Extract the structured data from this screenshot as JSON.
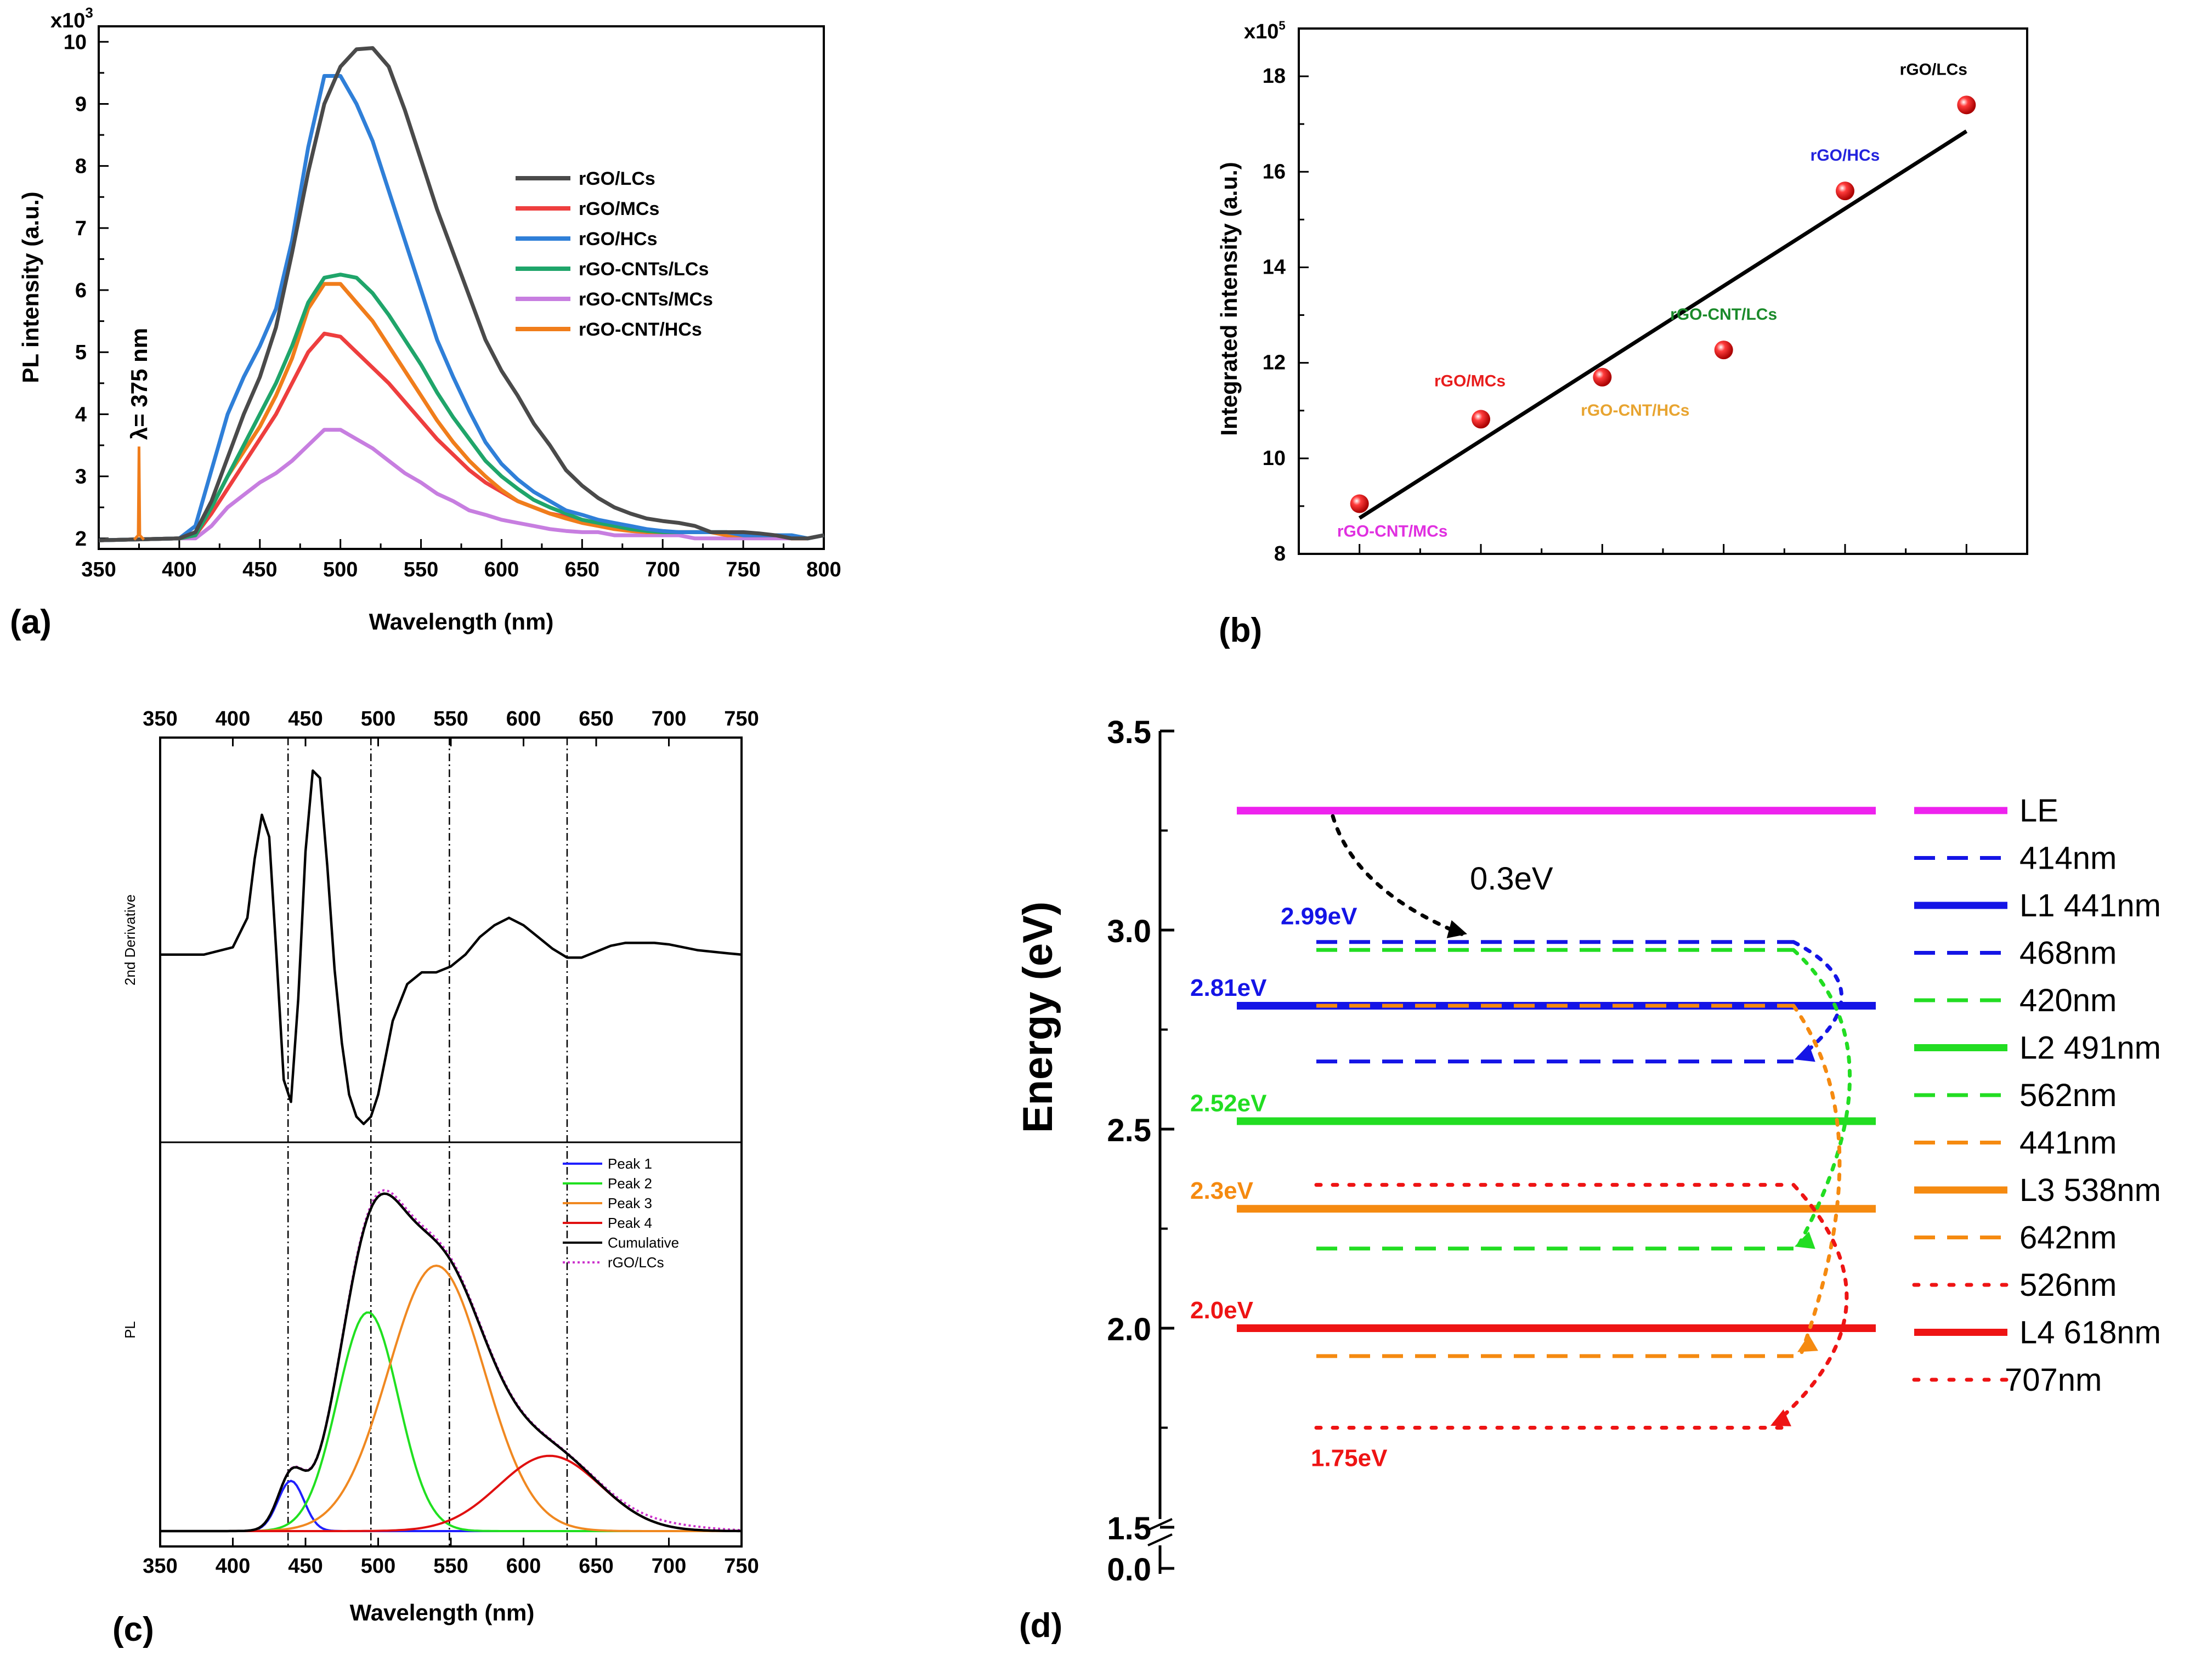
{
  "chart_data": [
    {
      "id": "a",
      "type": "line",
      "panel_label": "(a)",
      "xlabel": "Wavelength (nm)",
      "ylabel": "PL intensity (a.u.)",
      "y_multiplier": "x10",
      "y_multiplier_exp": "3",
      "xlim": [
        350,
        800
      ],
      "ylim": [
        2,
        10
      ],
      "xticks": [
        "350",
        "400",
        "450",
        "500",
        "550",
        "600",
        "650",
        "700",
        "750",
        "800"
      ],
      "yticks": [
        "2",
        "3",
        "4",
        "5",
        "6",
        "7",
        "8",
        "9",
        "10"
      ],
      "annotation": "λ= 375 nm",
      "excitation_peak": {
        "x": 375,
        "y": 3.48
      },
      "series": [
        {
          "name": "rGO/LCs",
          "color": "#4a4a4a",
          "x": [
            350,
            400,
            410,
            420,
            430,
            440,
            450,
            460,
            470,
            480,
            490,
            500,
            510,
            520,
            530,
            540,
            550,
            560,
            570,
            580,
            590,
            600,
            610,
            620,
            630,
            640,
            650,
            660,
            670,
            680,
            690,
            700,
            710,
            720,
            730,
            740,
            750,
            760,
            770,
            780,
            790,
            800
          ],
          "y": [
            1.97,
            2.0,
            2.1,
            2.6,
            3.3,
            4.0,
            4.6,
            5.4,
            6.6,
            7.9,
            9.0,
            9.6,
            9.88,
            9.9,
            9.6,
            8.9,
            8.1,
            7.3,
            6.6,
            5.9,
            5.2,
            4.7,
            4.3,
            3.85,
            3.5,
            3.1,
            2.85,
            2.65,
            2.5,
            2.4,
            2.32,
            2.28,
            2.25,
            2.2,
            2.1,
            2.1,
            2.1,
            2.08,
            2.05,
            2.0,
            2.0,
            2.05
          ]
        },
        {
          "name": "rGO/MCs",
          "color": "#ee3e3e",
          "x": [
            350,
            400,
            410,
            420,
            430,
            440,
            450,
            460,
            470,
            480,
            490,
            500,
            510,
            520,
            530,
            540,
            550,
            560,
            570,
            580,
            590,
            600,
            610,
            620,
            630,
            640,
            650,
            660,
            670,
            680,
            690,
            700,
            710,
            720,
            730,
            740,
            750,
            760,
            770,
            780,
            790,
            800
          ],
          "y": [
            1.97,
            2.0,
            2.05,
            2.4,
            2.8,
            3.2,
            3.6,
            4.0,
            4.5,
            5.0,
            5.3,
            5.25,
            5.0,
            4.75,
            4.5,
            4.2,
            3.9,
            3.6,
            3.35,
            3.1,
            2.9,
            2.75,
            2.6,
            2.5,
            2.4,
            2.35,
            2.3,
            2.25,
            2.2,
            2.15,
            2.1,
            2.1,
            2.1,
            2.1,
            2.1,
            2.05,
            2.05,
            2.05,
            2.05,
            2.0,
            2.0,
            2.05
          ]
        },
        {
          "name": "rGO/HCs",
          "color": "#2f7fd8",
          "x": [
            350,
            400,
            410,
            420,
            430,
            440,
            450,
            460,
            470,
            480,
            490,
            500,
            510,
            520,
            530,
            540,
            550,
            560,
            570,
            580,
            590,
            600,
            610,
            620,
            630,
            640,
            650,
            660,
            670,
            680,
            690,
            700,
            710,
            720,
            730,
            740,
            750,
            760,
            770,
            780,
            790,
            800
          ],
          "y": [
            1.97,
            2.0,
            2.2,
            3.1,
            4.0,
            4.6,
            5.1,
            5.7,
            6.8,
            8.3,
            9.45,
            9.45,
            9.0,
            8.4,
            7.6,
            6.8,
            6.0,
            5.2,
            4.6,
            4.05,
            3.55,
            3.2,
            2.95,
            2.75,
            2.6,
            2.45,
            2.38,
            2.3,
            2.25,
            2.2,
            2.15,
            2.12,
            2.1,
            2.1,
            2.1,
            2.1,
            2.05,
            2.05,
            2.05,
            2.05,
            2.0,
            2.05
          ]
        },
        {
          "name": "rGO-CNTs/LCs",
          "color": "#1fa56a",
          "x": [
            350,
            400,
            410,
            420,
            430,
            440,
            450,
            460,
            470,
            480,
            490,
            500,
            510,
            520,
            530,
            540,
            550,
            560,
            570,
            580,
            590,
            600,
            610,
            620,
            630,
            640,
            650,
            660,
            670,
            680,
            690,
            700,
            710,
            720,
            730,
            740,
            750,
            760,
            770,
            780,
            790,
            800
          ],
          "y": [
            1.97,
            2.0,
            2.05,
            2.5,
            3.0,
            3.5,
            4.0,
            4.5,
            5.1,
            5.8,
            6.2,
            6.25,
            6.2,
            5.95,
            5.6,
            5.2,
            4.8,
            4.35,
            3.95,
            3.6,
            3.25,
            3.0,
            2.8,
            2.62,
            2.5,
            2.4,
            2.3,
            2.25,
            2.2,
            2.15,
            2.12,
            2.1,
            2.1,
            2.1,
            2.1,
            2.1,
            2.05,
            2.05,
            2.05,
            2.05,
            2.0,
            2.05
          ]
        },
        {
          "name": "rGO-CNTs/MCs",
          "color": "#c77ee0",
          "x": [
            350,
            400,
            410,
            420,
            430,
            440,
            450,
            460,
            470,
            480,
            490,
            500,
            510,
            520,
            530,
            540,
            550,
            560,
            570,
            580,
            590,
            600,
            610,
            620,
            630,
            640,
            650,
            660,
            670,
            680,
            690,
            700,
            710,
            720,
            730,
            740,
            750,
            760,
            770,
            780,
            790,
            800
          ],
          "y": [
            1.97,
            2.0,
            2.0,
            2.2,
            2.5,
            2.7,
            2.9,
            3.05,
            3.25,
            3.5,
            3.75,
            3.75,
            3.6,
            3.45,
            3.25,
            3.05,
            2.9,
            2.72,
            2.6,
            2.45,
            2.38,
            2.3,
            2.25,
            2.2,
            2.15,
            2.12,
            2.1,
            2.1,
            2.05,
            2.05,
            2.05,
            2.05,
            2.05,
            2.0,
            2.0,
            2.0,
            2.0,
            2.0,
            2.0,
            2.0,
            2.0,
            2.05
          ]
        },
        {
          "name": "rGO-CNT/HCs",
          "color": "#f07d1b",
          "x": [
            350,
            400,
            410,
            420,
            430,
            440,
            450,
            460,
            470,
            480,
            490,
            500,
            510,
            520,
            530,
            540,
            550,
            560,
            570,
            580,
            590,
            600,
            610,
            620,
            630,
            640,
            650,
            660,
            670,
            680,
            690,
            700,
            710,
            720,
            730,
            740,
            750,
            760,
            770,
            780,
            790,
            800
          ],
          "y": [
            1.97,
            2.0,
            2.05,
            2.5,
            3.0,
            3.4,
            3.8,
            4.3,
            4.9,
            5.7,
            6.1,
            6.1,
            5.8,
            5.5,
            5.1,
            4.7,
            4.3,
            3.9,
            3.55,
            3.25,
            3.0,
            2.78,
            2.6,
            2.5,
            2.4,
            2.32,
            2.25,
            2.2,
            2.15,
            2.12,
            2.1,
            2.1,
            2.1,
            2.1,
            2.1,
            2.05,
            2.05,
            2.05,
            2.05,
            2.0,
            2.0,
            2.05
          ]
        }
      ]
    },
    {
      "id": "b",
      "type": "scatter",
      "panel_label": "(b)",
      "ylabel": "Integrated intensity (a.u.)",
      "y_multiplier": "x10",
      "y_multiplier_exp": "5",
      "ylim": [
        8,
        19
      ],
      "xlim": [
        0.5,
        6.5
      ],
      "yticks": [
        "8",
        "10",
        "12",
        "14",
        "16",
        "18"
      ],
      "points": [
        {
          "x": 1,
          "y": 9.05,
          "label": "rGO-CNT/MCs",
          "color": "#e030e0"
        },
        {
          "x": 2,
          "y": 10.82,
          "label": "rGO/MCs",
          "color": "#e81c1c"
        },
        {
          "x": 3,
          "y": 11.7,
          "label": "rGO-CNT/HCs",
          "color": "#e8a430"
        },
        {
          "x": 4,
          "y": 12.27,
          "label": "rGO-CNT/LCs",
          "color": "#1a8a2a"
        },
        {
          "x": 5,
          "y": 15.6,
          "label": "rGO/HCs",
          "color": "#2222dd"
        },
        {
          "x": 6,
          "y": 17.4,
          "label": "rGO/LCs",
          "color": "#000000"
        }
      ],
      "fit_line": {
        "x": [
          1,
          6
        ],
        "y": [
          8.75,
          16.85
        ]
      }
    },
    {
      "id": "c",
      "type": "line",
      "panel_label": "(c)",
      "xlabel": "Wavelength (nm)",
      "xlim": [
        350,
        750
      ],
      "xticks": [
        "350",
        "400",
        "450",
        "500",
        "550",
        "600",
        "650",
        "700",
        "750"
      ],
      "top_ylabel": "2nd Derivative",
      "bottom_ylabel": "PL",
      "vlines": [
        438,
        495,
        549,
        630
      ],
      "derivative": {
        "x": [
          350,
          380,
          400,
          410,
          415,
          420,
          425,
          430,
          435,
          440,
          445,
          450,
          455,
          460,
          465,
          470,
          475,
          480,
          485,
          490,
          495,
          500,
          505,
          510,
          520,
          530,
          540,
          550,
          560,
          570,
          580,
          590,
          600,
          610,
          620,
          630,
          640,
          650,
          660,
          670,
          680,
          690,
          700,
          710,
          720,
          730,
          740,
          750
        ],
        "y": [
          0,
          0,
          0.05,
          0.25,
          0.65,
          0.95,
          0.8,
          0.0,
          -0.85,
          -1.0,
          -0.3,
          0.7,
          1.25,
          1.2,
          0.6,
          -0.1,
          -0.6,
          -0.95,
          -1.1,
          -1.15,
          -1.1,
          -0.95,
          -0.7,
          -0.45,
          -0.2,
          -0.12,
          -0.12,
          -0.08,
          0.0,
          0.12,
          0.2,
          0.25,
          0.2,
          0.12,
          0.04,
          -0.02,
          -0.02,
          0.02,
          0.06,
          0.08,
          0.08,
          0.08,
          0.07,
          0.05,
          0.03,
          0.02,
          0.01,
          0.0
        ]
      },
      "legend": [
        "Peak 1",
        "Peak 2",
        "Peak 3",
        "Peak 4",
        "Cumulative",
        "rGO/LCs"
      ],
      "peaks": [
        {
          "name": "Peak 1",
          "color": "#2020ff",
          "center": 440,
          "width": 9,
          "amp": 0.14
        },
        {
          "name": "Peak 2",
          "color": "#20e020",
          "center": 493,
          "width": 21,
          "amp": 0.61
        },
        {
          "name": "Peak 3",
          "color": "#f08820",
          "center": 540,
          "width": 33,
          "amp": 0.74
        },
        {
          "name": "Peak 4",
          "color": "#e01010",
          "center": 618,
          "width": 35,
          "amp": 0.21
        }
      ],
      "cumulative_color": "#000000",
      "data_color": "#cc33cc"
    },
    {
      "id": "d",
      "type": "diagram",
      "panel_label": "(d)",
      "ylabel": "Energy (eV)",
      "ylim": [
        1.5,
        3.5
      ],
      "yticks": [
        "1.5",
        "2.0",
        "2.5",
        "3.0",
        "3.5"
      ],
      "ybreak_label": "0.0",
      "transition_label": "0.3eV",
      "levels": [
        {
          "name": "LE",
          "energy": 3.3,
          "color": "#ee22ee",
          "style": "solid"
        },
        {
          "name": "L1 441nm",
          "energy": 2.81,
          "color": "#1414e6",
          "style": "solid"
        },
        {
          "name": "L2  491nm",
          "energy": 2.52,
          "color": "#22dd22",
          "style": "solid"
        },
        {
          "name": "L3  538nm",
          "energy": 2.3,
          "color": "#f58a10",
          "style": "solid"
        },
        {
          "name": "L4  618nm",
          "energy": 2.0,
          "color": "#ee1414",
          "style": "solid"
        }
      ],
      "sublevels": [
        {
          "energy": 2.97,
          "color": "#1414e6",
          "style": "dash"
        },
        {
          "energy": 2.95,
          "color": "#22dd22",
          "style": "dash"
        },
        {
          "energy": 2.81,
          "color": "#f58a10",
          "style": "dash"
        },
        {
          "energy": 2.67,
          "color": "#1414e6",
          "style": "dash"
        },
        {
          "energy": 2.36,
          "color": "#ee1414",
          "style": "dot"
        },
        {
          "energy": 2.2,
          "color": "#22dd22",
          "style": "dash"
        },
        {
          "energy": 1.93,
          "color": "#f58a10",
          "style": "dash"
        },
        {
          "energy": 1.75,
          "color": "#ee1414",
          "style": "dot"
        }
      ],
      "energy_labels": [
        {
          "text": "2.99eV",
          "energy": 2.99,
          "color": "#1414e6"
        },
        {
          "text": "2.81eV",
          "energy": 2.81,
          "color": "#1414e6"
        },
        {
          "text": "2.52eV",
          "energy": 2.52,
          "color": "#22dd22"
        },
        {
          "text": "2.3eV",
          "energy": 2.3,
          "color": "#f58a10"
        },
        {
          "text": "2.0eV",
          "energy": 2.0,
          "color": "#ee1414"
        },
        {
          "text": "1.75eV",
          "energy": 1.75,
          "color": "#ee1414"
        }
      ],
      "legend": [
        {
          "label": "LE",
          "color": "#ee22ee",
          "style": "solid"
        },
        {
          "label": "414nm",
          "color": "#1414e6",
          "style": "dash"
        },
        {
          "label": "L1 441nm",
          "color": "#1414e6",
          "style": "solid"
        },
        {
          "label": "468nm",
          "color": "#1414e6",
          "style": "dash"
        },
        {
          "label": "420nm",
          "color": "#22dd22",
          "style": "dash"
        },
        {
          "label": "L2  491nm",
          "color": "#22dd22",
          "style": "solid"
        },
        {
          "label": "562nm",
          "color": "#22dd22",
          "style": "dash"
        },
        {
          "label": "441nm",
          "color": "#f58a10",
          "style": "dash"
        },
        {
          "label": "L3  538nm",
          "color": "#f58a10",
          "style": "solid"
        },
        {
          "label": "642nm",
          "color": "#f58a10",
          "style": "dash"
        },
        {
          "label": "526nm",
          "color": "#ee1414",
          "style": "dot"
        },
        {
          "label": "L4  618nm",
          "color": "#ee1414",
          "style": "solid"
        },
        {
          "label": "707nm",
          "color": "#ee1414",
          "style": "dot"
        }
      ]
    }
  ]
}
